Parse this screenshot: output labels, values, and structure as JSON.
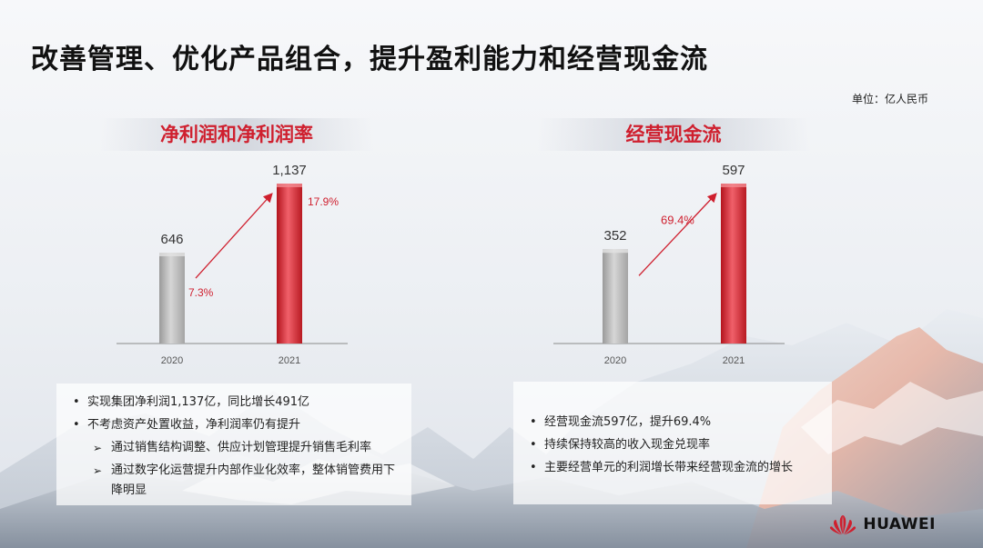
{
  "slide": {
    "title": "改善管理、优化产品组合，提升盈利能力和经营现金流",
    "unit": "单位：亿人民币"
  },
  "left_panel": {
    "title": "净利润和净利润率",
    "bullets": [
      {
        "level": 1,
        "text": "实现集团净利润1,137亿，同比增长491亿"
      },
      {
        "level": 1,
        "text": "不考虑资产处置收益，净利润率仍有提升"
      },
      {
        "level": 2,
        "text": "通过销售结构调整、供应计划管理提升销售毛利率"
      },
      {
        "level": 2,
        "text": "通过数字化运营提升内部作业化效率，整体销管费用下降明显"
      }
    ]
  },
  "right_panel": {
    "title": "经营现金流",
    "bullets": [
      {
        "level": 1,
        "text": "经营现金流597亿，提升69.4%"
      },
      {
        "level": 1,
        "text": "持续保持较高的收入现金兑现率"
      },
      {
        "level": 1,
        "text": "主要经营单元的利润增长带来经营现金流的增长"
      }
    ]
  },
  "brand": {
    "name": "HUAWEI",
    "logo_icon": "huawei-petal-logo-icon",
    "color": "#cf1f2e"
  },
  "colors": {
    "accent_red": "#cf1f2e",
    "bar_gray": "#b8b8b8",
    "bar_red": "#d9262f"
  },
  "chart_data": [
    {
      "type": "bar",
      "title": "净利润和净利润率",
      "categories": [
        "2020",
        "2021"
      ],
      "values": [
        646,
        1137
      ],
      "value_labels": [
        "646",
        "1,137"
      ],
      "rate_labels": [
        "7.3%",
        "17.9%"
      ],
      "ylim": [
        0,
        1137
      ],
      "grid": false,
      "trend_arrow": true
    },
    {
      "type": "bar",
      "title": "经营现金流",
      "categories": [
        "2020",
        "2021"
      ],
      "values": [
        352,
        597
      ],
      "value_labels": [
        "352",
        "597"
      ],
      "growth_label": "69.4%",
      "ylim": [
        0,
        597
      ],
      "grid": false,
      "trend_arrow": true
    }
  ]
}
